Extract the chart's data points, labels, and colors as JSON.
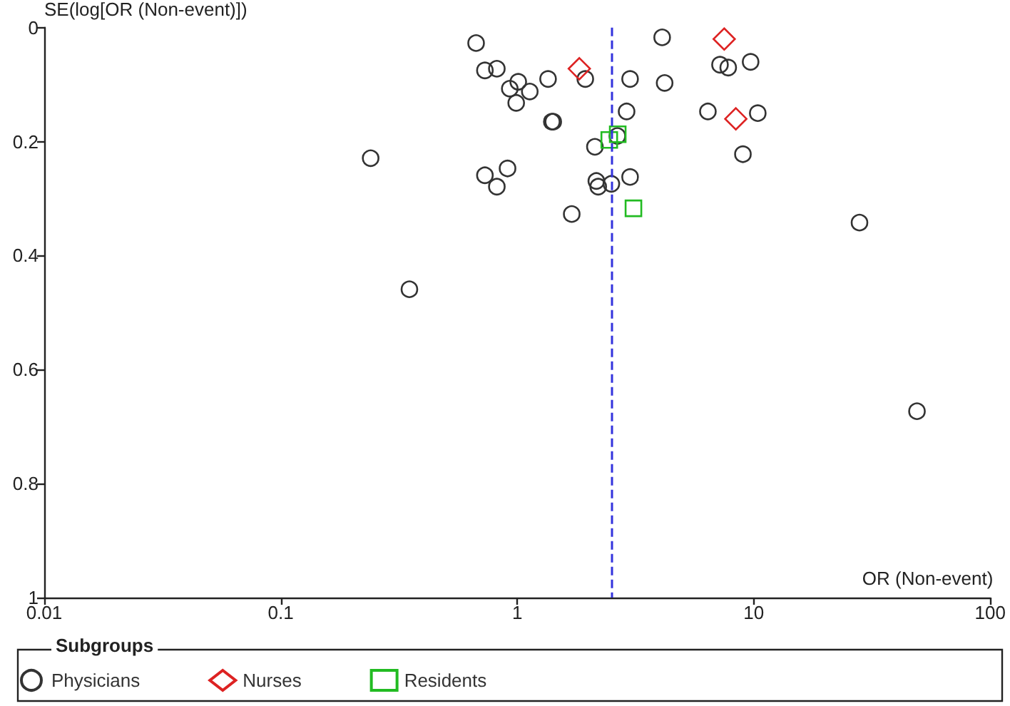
{
  "chart_data": {
    "type": "scatter",
    "xlabel": "OR (Non-event)",
    "ylabel": "SE(log[OR (Non-event)])",
    "legend_title": "Subgroups",
    "log": "x",
    "grid": false,
    "legend": "bottom",
    "xlim": [
      0.01,
      100
    ],
    "xticks": [
      0.01,
      0.1,
      1,
      10,
      100
    ],
    "ylim": [
      1,
      0
    ],
    "yticks": [
      0,
      0.2,
      0.4,
      0.6,
      0.8,
      1
    ],
    "ref_lines": [
      {
        "axis": "x",
        "value": 2.5,
        "color": "#3333dd",
        "line_style": "dashed"
      }
    ],
    "series": [
      {
        "name": "Physicians",
        "color": "#333333",
        "marker": "circle",
        "x": [
          0.67,
          0.73,
          0.82,
          1.01,
          0.93,
          1.13,
          0.99,
          1.35,
          1.4,
          1.42,
          1.94,
          3.0,
          4.1,
          4.2,
          2.9,
          6.4,
          2.65,
          2.13,
          0.24,
          0.73,
          0.91,
          0.82,
          2.16,
          2.2,
          2.5,
          3.0,
          1.7,
          0.35,
          7.2,
          7.8,
          9.7,
          10.4,
          9.0,
          28,
          49
        ],
        "values": [
          0.027,
          0.075,
          0.072,
          0.095,
          0.107,
          0.112,
          0.132,
          0.09,
          0.165,
          0.165,
          0.09,
          0.09,
          0.017,
          0.097,
          0.147,
          0.147,
          0.19,
          0.209,
          0.229,
          0.259,
          0.247,
          0.279,
          0.269,
          0.279,
          0.274,
          0.262,
          0.327,
          0.459,
          0.065,
          0.07,
          0.06,
          0.15,
          0.222,
          0.342,
          0.673
        ]
      },
      {
        "name": "Nurses",
        "color": "#dd2222",
        "marker": "diamond",
        "x": [
          1.83,
          7.5,
          8.4
        ],
        "values": [
          0.072,
          0.02,
          0.16
        ]
      },
      {
        "name": "Residents",
        "color": "#22bb22",
        "marker": "square",
        "x": [
          2.45,
          2.66,
          3.1
        ],
        "values": [
          0.197,
          0.187,
          0.317
        ]
      }
    ]
  }
}
